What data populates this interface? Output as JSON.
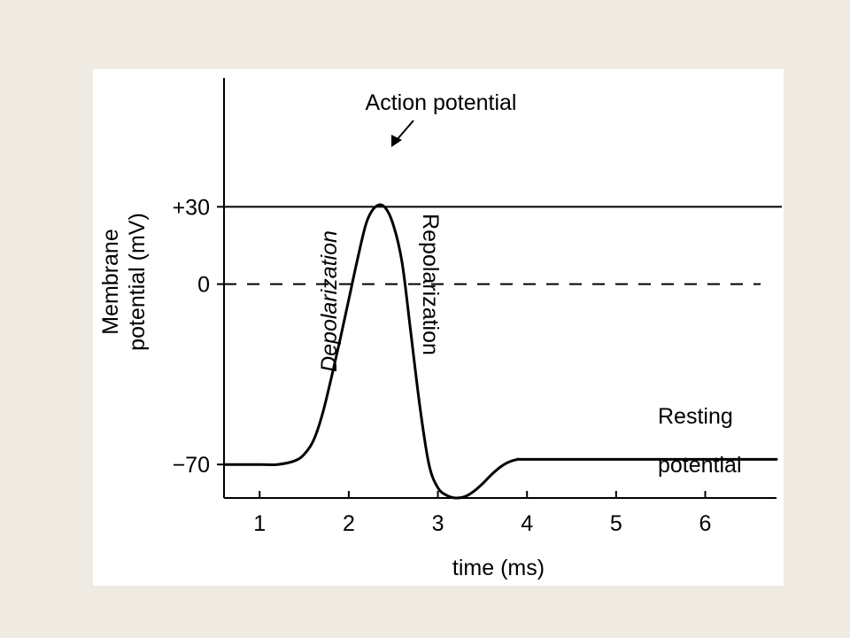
{
  "chart_data": {
    "type": "line",
    "title": "",
    "xlabel": "time (ms)",
    "ylabel": "Membrane potential (mV)",
    "xlim": [
      0.6,
      6.8
    ],
    "ylim": [
      -83,
      80
    ],
    "x_ticks": [
      1,
      2,
      3,
      4,
      5,
      6
    ],
    "y_ticks": [
      {
        "value": 30,
        "label": "+30"
      },
      {
        "value": 0,
        "label": "0"
      },
      {
        "value": -70,
        "label": "−70"
      }
    ],
    "grid": false,
    "reference_lines": [
      {
        "y": 30,
        "style": "solid"
      },
      {
        "y": 0,
        "style": "dashed"
      }
    ],
    "series": [
      {
        "color": "#000000",
        "x": [
          0.6,
          1.0,
          1.2,
          1.4,
          1.5,
          1.6,
          1.7,
          1.8,
          1.9,
          2.0,
          2.1,
          2.2,
          2.3,
          2.4,
          2.5,
          2.6,
          2.7,
          2.8,
          2.9,
          3.0,
          3.1,
          3.2,
          3.3,
          3.4,
          3.5,
          3.6,
          3.7,
          3.8,
          3.9,
          4.0,
          5.0,
          6.0,
          6.8
        ],
        "values": [
          -70,
          -70,
          -70,
          -68.5,
          -66,
          -61,
          -51,
          -37,
          -22,
          -6,
          10,
          24,
          30,
          30,
          23,
          8,
          -20,
          -48,
          -70,
          -79,
          -82,
          -83,
          -82.5,
          -80.5,
          -77.5,
          -74,
          -71,
          -69,
          -68,
          -68,
          -68,
          -68,
          -68
        ]
      }
    ],
    "annotations": [
      {
        "text": "Action potential",
        "x": 2.4,
        "y": 30,
        "arrow": true
      },
      {
        "text": "Depolarization",
        "rotation": "vertical, reading bottom-to-top"
      },
      {
        "text": "Repolarization",
        "rotation": "vertical, reading top-to-bottom"
      },
      {
        "text": "Resting",
        "near": "right end of baseline"
      },
      {
        "text": "potential",
        "near": "right end of baseline"
      }
    ]
  }
}
